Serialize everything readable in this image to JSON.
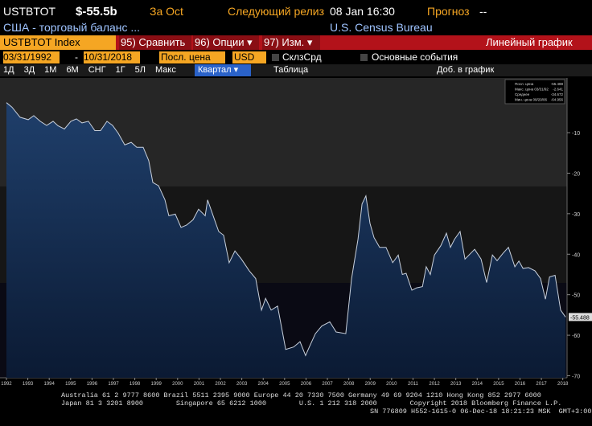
{
  "header": {
    "ticker": "USTBTOT",
    "last": "$-55.5b",
    "period": "За Oct",
    "next_label": "Следующий релиз",
    "next_date": "08 Jan 16:30",
    "forecast_label": "Прогноз",
    "forecast": "--",
    "description": "США - торговый баланс ...",
    "source": "U.S. Census Bureau"
  },
  "toolbar": {
    "security": "USTBTOT Index",
    "compare": "95) Сравнить",
    "options": "96) Опции ▾",
    "edit": "97) Изм. ▾",
    "chart_kind": "Линейный график"
  },
  "settings": {
    "start": "03/31/1992",
    "dash": "-",
    "end": "10/31/2018",
    "field": "Посл. цена",
    "currency": "USD",
    "moving_avg": "СклзСрд",
    "events": "Основные события"
  },
  "ranges": {
    "buttons": [
      "1Д",
      "3Д",
      "1М",
      "6М",
      "СНГ",
      "1Г",
      "5Л",
      "Макс"
    ],
    "period": "Квартал ▾",
    "table": "Таблица",
    "add": "Доб. в график"
  },
  "chart_data": {
    "type": "line",
    "color": "#c8d0dc",
    "x": [
      1992.0,
      1992.26,
      1992.64,
      1993.02,
      1993.28,
      1993.58,
      1993.88,
      1994.18,
      1994.41,
      1994.71,
      1995.01,
      1995.27,
      1995.53,
      1995.83,
      1996.13,
      1996.4,
      1996.7,
      1996.96,
      1997.22,
      1997.53,
      1997.83,
      1998.09,
      1998.39,
      1998.65,
      1998.84,
      1999.11,
      1999.41,
      1999.59,
      1999.89,
      2000.16,
      2000.42,
      2000.72,
      2000.98,
      2001.29,
      2001.4,
      2001.66,
      2001.92,
      2002.15,
      2002.41,
      2002.68,
      2002.98,
      2003.35,
      2003.65,
      2003.92,
      2004.11,
      2004.37,
      2004.67,
      2005.05,
      2005.42,
      2005.72,
      2005.98,
      2006.17,
      2006.44,
      2006.74,
      2007.11,
      2007.41,
      2007.86,
      2008.13,
      2008.43,
      2008.62,
      2008.8,
      2008.99,
      2009.18,
      2009.44,
      2009.74,
      2010.05,
      2010.31,
      2010.5,
      2010.68,
      2010.95,
      2011.17,
      2011.44,
      2011.62,
      2011.81,
      2012.0,
      2012.3,
      2012.56,
      2012.75,
      2012.94,
      2013.2,
      2013.43,
      2013.69,
      2013.88,
      2014.18,
      2014.44,
      2014.71,
      2014.93,
      2015.2,
      2015.46,
      2015.76,
      2015.95,
      2016.14,
      2016.4,
      2016.7,
      2016.96,
      2017.19,
      2017.38,
      2017.64,
      2017.9,
      2018.13
    ],
    "values": [
      -2.6,
      -3.7,
      -6.2,
      -6.8,
      -5.8,
      -7.2,
      -8.2,
      -7.2,
      -8.3,
      -9.1,
      -7.2,
      -6.6,
      -7.6,
      -7.2,
      -9.5,
      -9.5,
      -7.2,
      -8.2,
      -10.1,
      -13.0,
      -12.4,
      -13.6,
      -13.6,
      -16.9,
      -22.3,
      -23.1,
      -26.6,
      -30.5,
      -30.1,
      -33.4,
      -32.8,
      -31.5,
      -28.9,
      -30.5,
      -26.6,
      -30.5,
      -34.4,
      -35.3,
      -42.1,
      -39.2,
      -41.2,
      -44.1,
      -46.0,
      -53.8,
      -50.9,
      -53.8,
      -52.8,
      -63.5,
      -62.9,
      -61.6,
      -65.0,
      -62.7,
      -59.6,
      -57.7,
      -56.7,
      -59.2,
      -59.6,
      -46.0,
      -36.3,
      -27.6,
      -25.6,
      -32.4,
      -35.9,
      -38.3,
      -38.3,
      -42.1,
      -40.2,
      -45.0,
      -44.7,
      -48.9,
      -48.3,
      -48.0,
      -43.1,
      -45.0,
      -40.2,
      -37.9,
      -34.8,
      -38.3,
      -36.3,
      -34.4,
      -41.2,
      -39.8,
      -38.8,
      -41.2,
      -47.0,
      -40.2,
      -41.6,
      -39.8,
      -38.3,
      -43.1,
      -41.7,
      -43.5,
      -43.3,
      -44.1,
      -46.0,
      -51.1,
      -45.6,
      -45.2,
      -53.8,
      -55.5
    ],
    "xlim": [
      1991.7,
      2018.2
    ],
    "xticks": [
      1992,
      1993,
      1994,
      1995,
      1996,
      1997,
      1998,
      1999,
      2000,
      2001,
      2002,
      2003,
      2004,
      2005,
      2006,
      2007,
      2008,
      2009,
      2010,
      2011,
      2012,
      2013,
      2014,
      2015,
      2016,
      2017,
      2018
    ],
    "ylim": [
      -70.5,
      3.5
    ],
    "yticks": [
      -10,
      -20,
      -30,
      -40,
      -50,
      -60,
      -70
    ],
    "stats": [
      {
        "label": "Посл. цена",
        "value": "-55.488"
      },
      {
        "label": "Макс. цена 03/31/92",
        "value": "-2.641"
      },
      {
        "label": "Среднее",
        "value": "-34.672"
      },
      {
        "label": "Мин. цена 09/29/06",
        "value": "-64.956"
      }
    ]
  },
  "footer": {
    "line1": "Australia 61 2 9777 8600 Brazil 5511 2395 9000 Europe 44 20 7330 7500 Germany 49 69 9204 1210 Hong Kong 852 2977 6000",
    "line2": "Japan 81 3 3201 8900        Singapore 65 6212 1000        U.S. 1 212 318 2000        Copyright 2018 Bloomberg Finance L.P.",
    "line3": "SN 776809 H552-1615-0 06-Dec-18 18:21:23 MSK  GMT+3:00"
  }
}
